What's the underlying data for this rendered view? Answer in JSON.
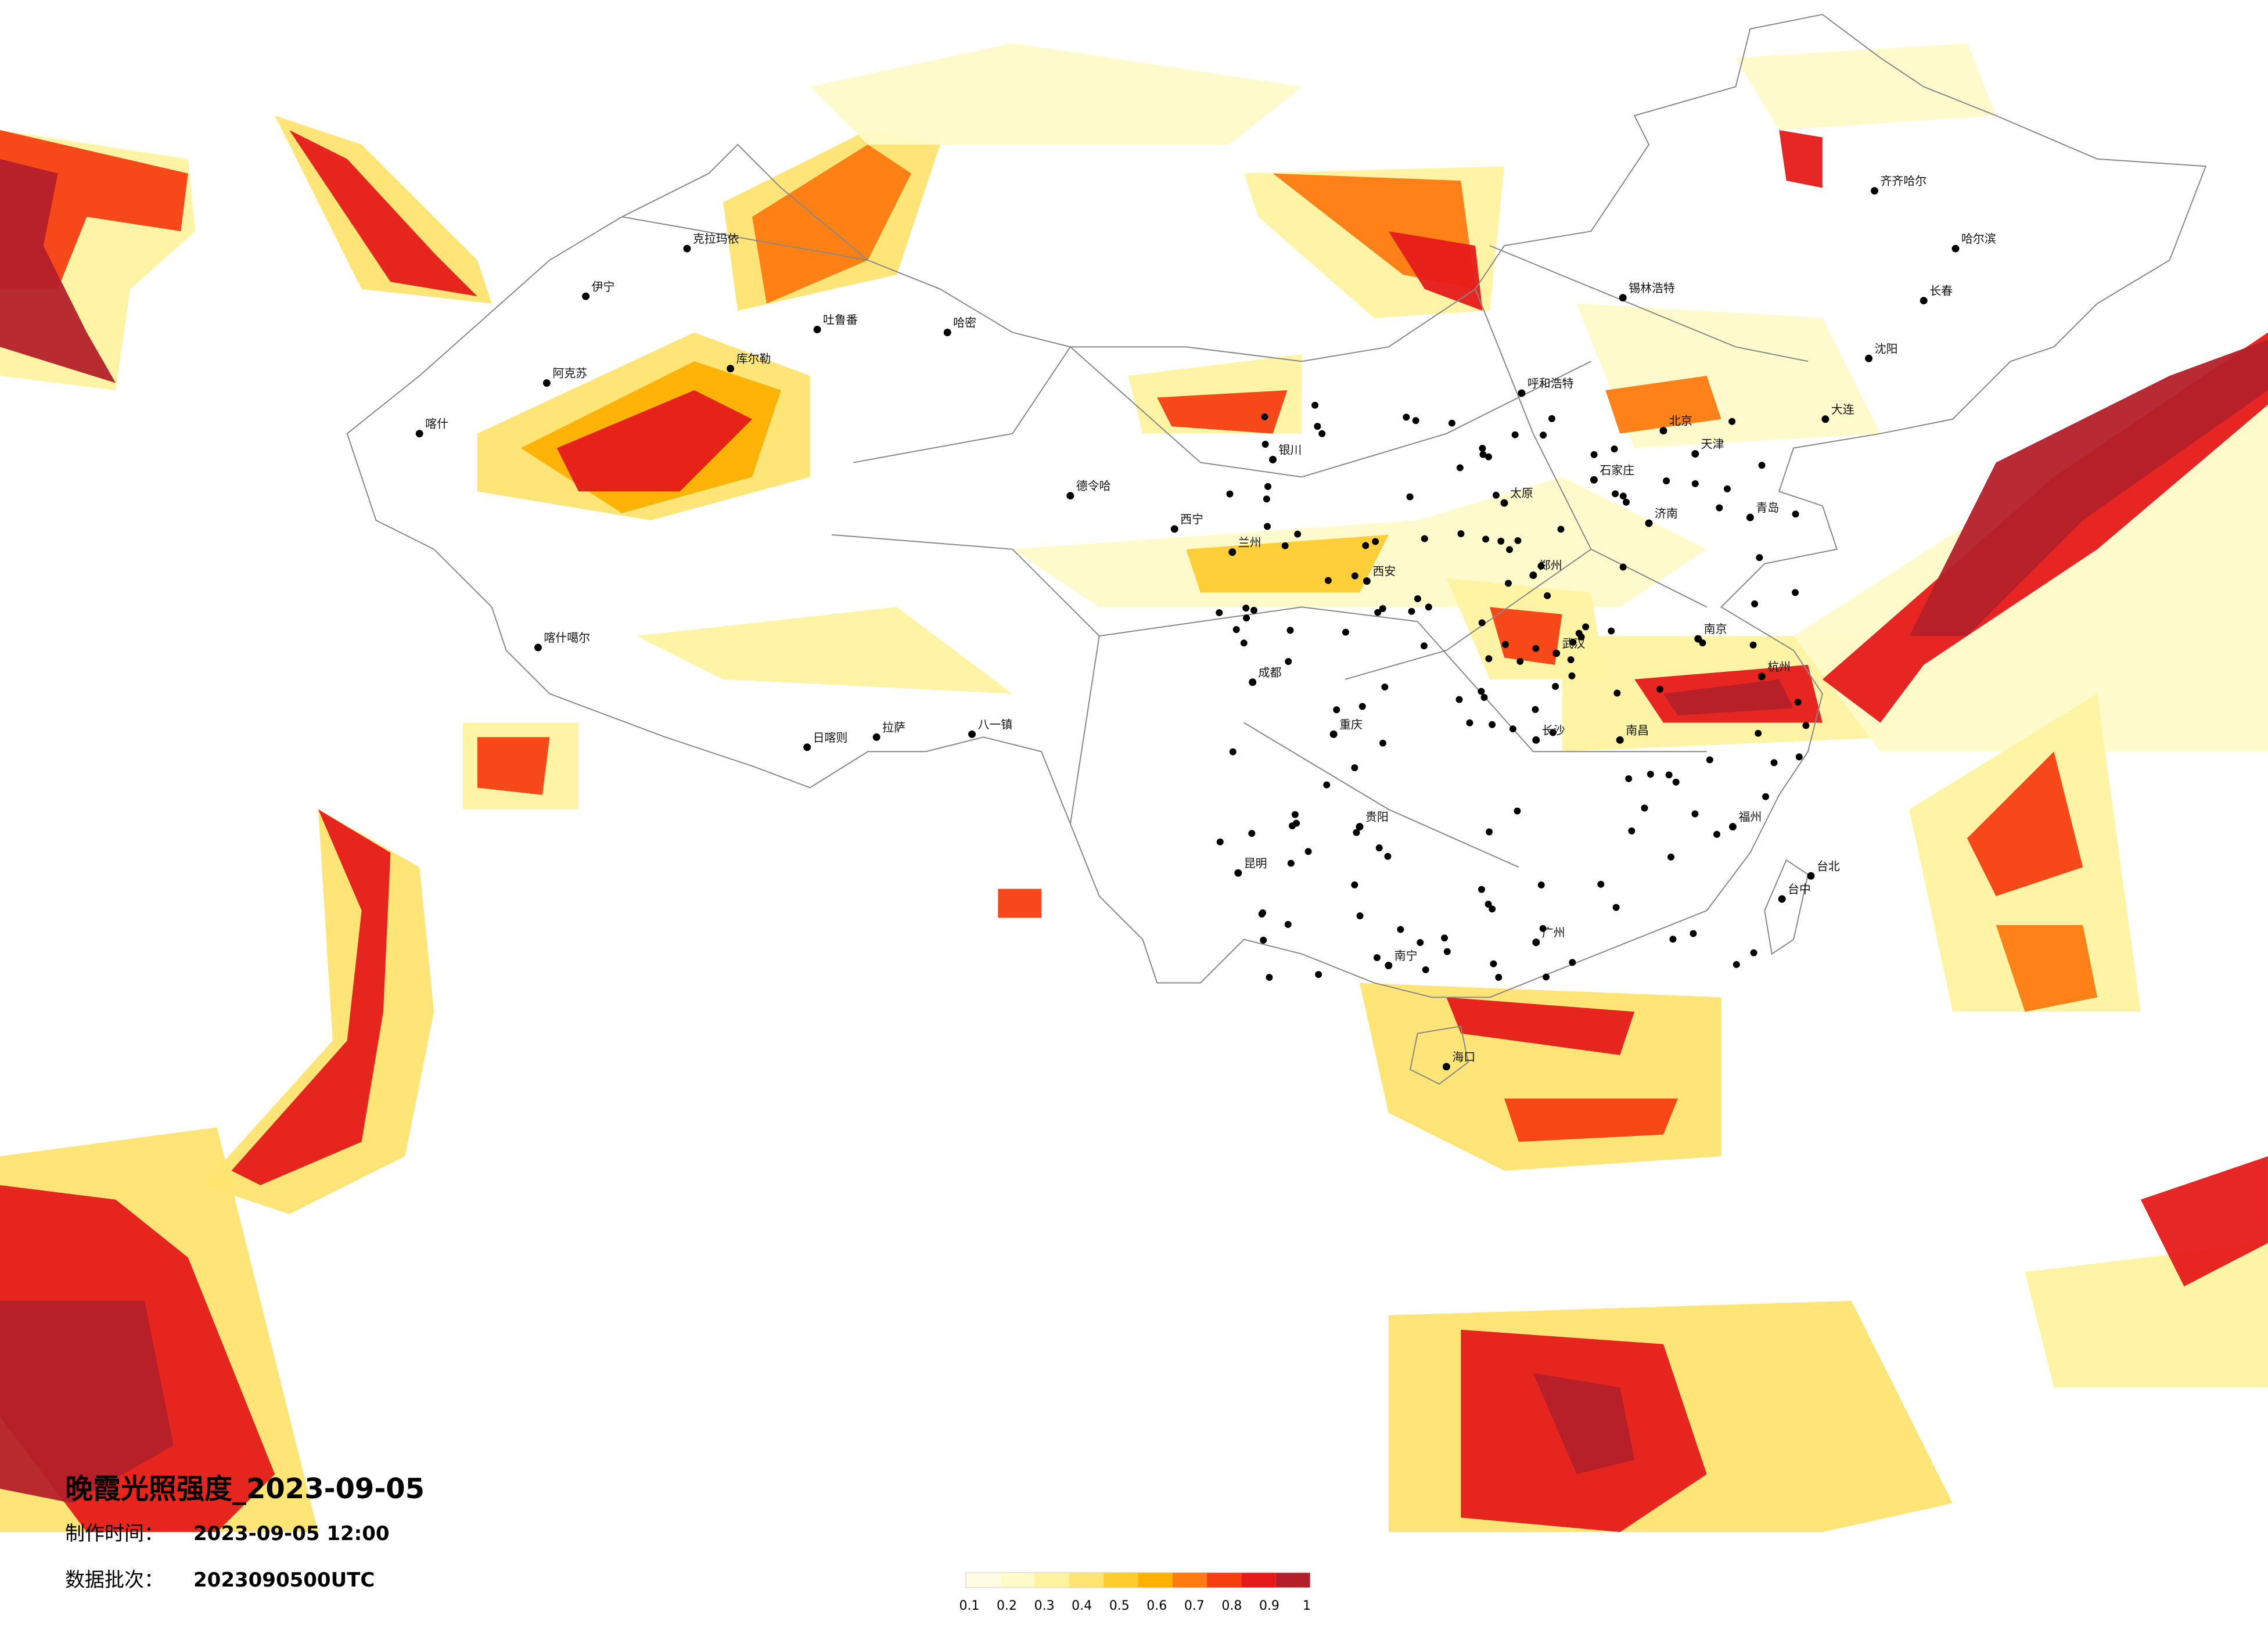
{
  "header": {
    "title": "晚霞光照强度_2023-09-05",
    "made_label": "制作时间：",
    "made_time": "2023-09-05 12:00",
    "batch_label": "数据批次：",
    "batch": "2023090500UTC"
  },
  "legend": {
    "ticks": [
      0.1,
      0.2,
      0.3,
      0.4,
      0.5,
      0.6,
      0.7,
      0.8,
      0.9,
      1
    ],
    "colors": [
      "#fffde6",
      "#fffac8",
      "#fff3a0",
      "#ffe470",
      "#ffcc30",
      "#ffb000",
      "#ff7a10",
      "#f53e10",
      "#e61a1a",
      "#b4202a"
    ]
  },
  "cities": [
    "克拉玛依",
    "伊宁",
    "阿克苏",
    "喀什",
    "库尔勒",
    "吐鲁番",
    "哈密",
    "喀什噶尔",
    "日喀则",
    "拉萨",
    "八一镇",
    "德令哈",
    "西宁",
    "兰州",
    "银川",
    "呼和浩特",
    "北京",
    "天津",
    "石家庄",
    "太原",
    "济南",
    "郑州",
    "西安",
    "成都",
    "重庆",
    "武汉",
    "长沙",
    "南昌",
    "杭州",
    "南京",
    "福州",
    "广州",
    "南宁",
    "昆明",
    "贵阳",
    "哈尔滨",
    "长春",
    "沈阳",
    "锡林浩特",
    "齐齐哈尔",
    "台北",
    "台中",
    "海口",
    "大连",
    "青岛"
  ]
}
